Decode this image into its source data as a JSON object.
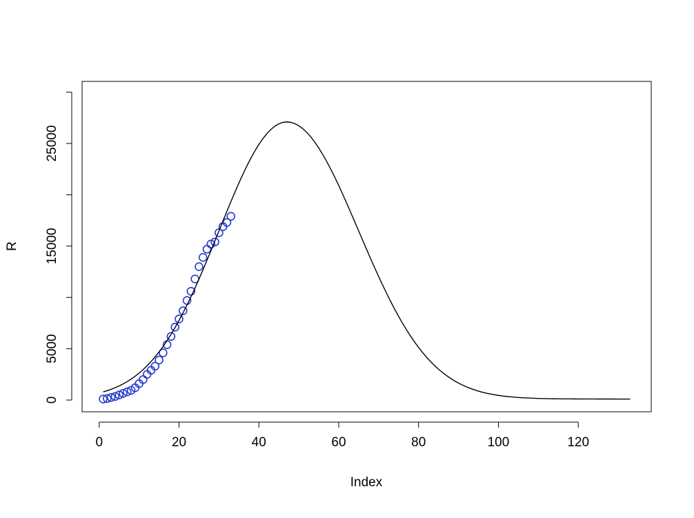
{
  "chart_data": {
    "type": "scatter",
    "xlabel": "Index",
    "ylabel": "R",
    "xlim": [
      -4.28,
      138.28
    ],
    "xticks": [
      0,
      20,
      40,
      60,
      80,
      100,
      120
    ],
    "ylim": [
      -1142,
      31048
    ],
    "yticks": [
      0,
      5000,
      15000,
      25000
    ],
    "yticks_unlabeled": [
      10000,
      20000,
      30000
    ],
    "series": [
      {
        "type": "scatter",
        "color": "#2438d0",
        "x": [
          1,
          2,
          3,
          4,
          5,
          6,
          7,
          8,
          9,
          10,
          11,
          12,
          13,
          14,
          15,
          16,
          17,
          18,
          19,
          20,
          21,
          22,
          23,
          24,
          25,
          26,
          27,
          28,
          29,
          30,
          31,
          32,
          33
        ],
        "values": [
          100,
          150,
          250,
          350,
          500,
          650,
          800,
          950,
          1200,
          1600,
          2000,
          2500,
          2900,
          3300,
          3900,
          4600,
          5400,
          6200,
          7100,
          7900,
          8700,
          9700,
          10600,
          11800,
          13000,
          13900,
          14700,
          15200,
          15400,
          16300,
          16900,
          17300,
          17900
        ]
      },
      {
        "type": "line",
        "color": "#000000",
        "x": [
          1,
          2,
          3,
          4,
          5,
          6,
          7,
          8,
          9,
          10,
          11,
          12,
          13,
          14,
          15,
          16,
          17,
          18,
          19,
          20,
          21,
          22,
          23,
          24,
          25,
          26,
          27,
          28,
          29,
          30,
          31,
          32,
          33,
          34,
          35,
          36,
          37,
          38,
          39,
          40,
          41,
          42,
          43,
          44,
          45,
          46,
          47,
          48,
          49,
          50,
          51,
          52,
          53,
          54,
          55,
          56,
          57,
          58,
          59,
          60,
          61,
          62,
          63,
          64,
          65,
          66,
          67,
          68,
          69,
          70,
          71,
          72,
          73,
          74,
          75,
          76,
          77,
          78,
          79,
          80,
          81,
          82,
          83,
          84,
          85,
          86,
          87,
          88,
          89,
          90,
          91,
          92,
          93,
          94,
          95,
          96,
          97,
          98,
          99,
          100,
          101,
          102,
          103,
          104,
          105,
          106,
          107,
          108,
          109,
          110,
          111,
          112,
          113,
          114,
          115,
          116,
          117,
          118,
          119,
          120,
          121,
          122,
          123,
          124,
          125,
          126,
          127,
          128,
          129,
          130,
          131,
          132,
          133
        ],
        "values": [
          794,
          913,
          1048,
          1201,
          1376,
          1574,
          1795,
          2042,
          2321,
          2626,
          2968,
          3343,
          3754,
          4204,
          4690,
          5219,
          5792,
          6402,
          7058,
          7752,
          8481,
          9258,
          10068,
          10911,
          11786,
          12690,
          13616,
          14559,
          15514,
          16476,
          17439,
          18395,
          19335,
          20256,
          21147,
          22002,
          22810,
          23571,
          24270,
          24905,
          25469,
          25955,
          26363,
          26682,
          26914,
          27054,
          27100,
          27058,
          26934,
          26728,
          26441,
          26078,
          25641,
          25134,
          24561,
          23928,
          23239,
          22502,
          21719,
          20901,
          20053,
          19178,
          18287,
          17385,
          16476,
          15568,
          14664,
          13770,
          12893,
          12034,
          11200,
          10392,
          9612,
          8867,
          8151,
          7474,
          6834,
          6229,
          5659,
          5127,
          4636,
          4177,
          3753,
          3364,
          3008,
          2681,
          2387,
          2117,
          1874,
          1658,
          1461,
          1285,
          1131,
          994,
          872,
          764,
          670,
          589,
          516,
          454,
          400,
          353,
          314,
          280,
          250,
          226,
          204,
          187,
          172,
          159,
          149,
          140,
          132,
          126,
          121,
          117,
          114,
          111,
          109,
          107,
          106,
          105,
          104,
          103,
          102,
          102,
          101,
          101,
          101,
          100,
          100,
          100,
          100
        ]
      }
    ]
  }
}
